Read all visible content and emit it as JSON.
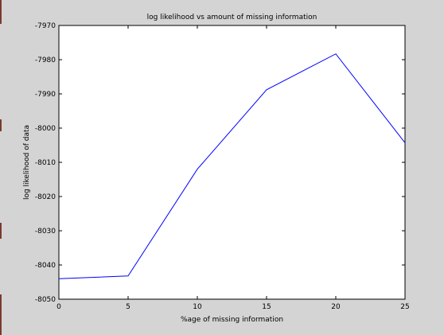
{
  "chart_data": {
    "type": "line",
    "title": "log likelihood vs amount of missing information",
    "xlabel": "%age of missing information",
    "ylabel": "log likelihood of data",
    "xlim": [
      0,
      25
    ],
    "ylim": [
      -8050,
      -7970
    ],
    "x_ticks": [
      0,
      5,
      10,
      15,
      20,
      25
    ],
    "y_ticks": [
      -7970,
      -7980,
      -7990,
      -8000,
      -8010,
      -8020,
      -8030,
      -8040,
      -8050
    ],
    "grid": false,
    "series": [
      {
        "color": "#0000ff",
        "x": [
          0,
          5,
          10,
          15,
          20,
          25
        ],
        "y": [
          -8044,
          -8043.2,
          -8012,
          -7988.8,
          -7978.3,
          -8004.3
        ]
      }
    ]
  }
}
